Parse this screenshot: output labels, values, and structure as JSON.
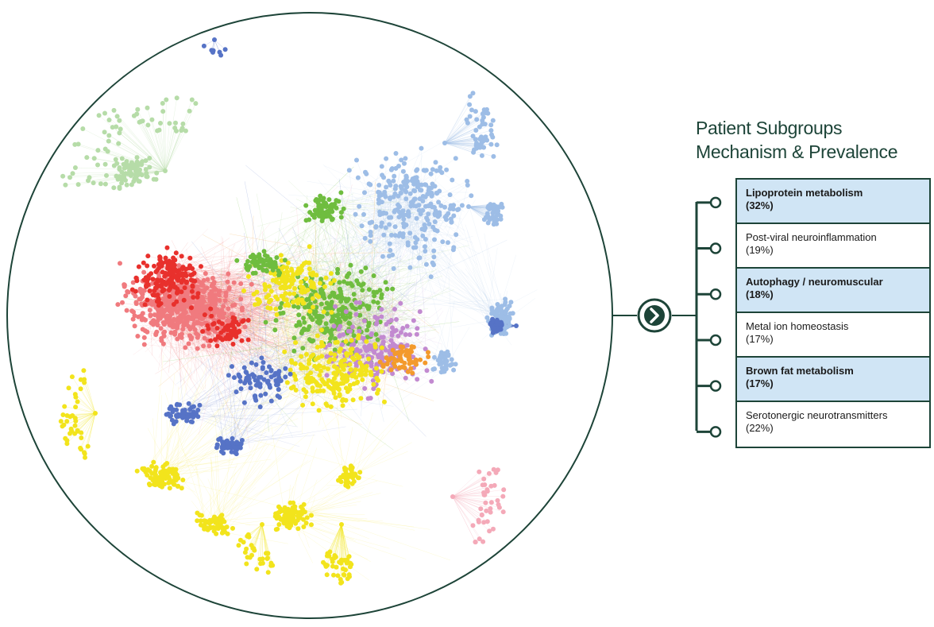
{
  "panel": {
    "title_line1": "Patient Subgroups",
    "title_line2": "Mechanism & Prevalence"
  },
  "subgroups": [
    {
      "name": "Lipoprotein metabolism",
      "prevalence": "(32%)",
      "highlighted": true
    },
    {
      "name": "Post-viral neuroinflammation",
      "prevalence": "(19%)",
      "highlighted": false
    },
    {
      "name": "Autophagy / neuromuscular",
      "prevalence": "(18%)",
      "highlighted": true
    },
    {
      "name": "Metal ion homeostasis",
      "prevalence": "(17%)",
      "highlighted": false
    },
    {
      "name": "Brown fat metabolism",
      "prevalence": "(17%)",
      "highlighted": true
    },
    {
      "name": "Serotonergic neurotransmitters",
      "prevalence": "(22%)",
      "highlighted": false
    }
  ],
  "colors": {
    "frame": "#1d4438",
    "highlight_fill": "#d0e5f5",
    "cluster_red": "#e8302c",
    "cluster_salmon": "#f07a7e",
    "cluster_pink": "#f4a9b8",
    "cluster_light_green": "#b6dca8",
    "cluster_green": "#6fbd3f",
    "cluster_light_blue": "#9dbde6",
    "cluster_blue": "#5673c6",
    "cluster_yellow": "#f2e41c",
    "cluster_orange": "#f39a2c",
    "cluster_purple": "#c28ad0"
  },
  "icons": {
    "arrow_button": "chevron-right-icon",
    "connector_node": "circle-node-icon"
  }
}
